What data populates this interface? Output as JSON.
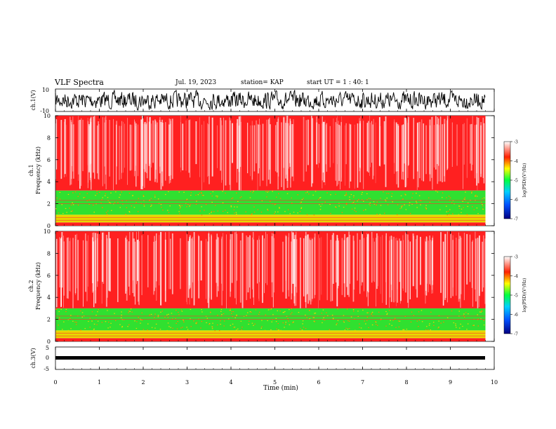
{
  "header": {
    "title": "VLF Spectra",
    "date": "Jul. 19, 2023",
    "station": "station= KAP",
    "start": "start UT =  1 : 40: 1"
  },
  "chart_data": [
    {
      "type": "line",
      "panel": "ch1-waveform",
      "ylabel": "ch.1(V)",
      "ylim": [
        -10,
        10
      ],
      "yticks": [
        "10",
        "-10"
      ],
      "xlim": [
        0,
        10
      ],
      "description_series": [
        {
          "name": "",
          "x": [
            0,
            0.5,
            1,
            1.5,
            2,
            2.5,
            3,
            3.5,
            4,
            4.5,
            5,
            5.5,
            6,
            6.5,
            7,
            7.5,
            8,
            8.5,
            9,
            9.8
          ],
          "y": [
            2,
            -4,
            3,
            -2,
            1,
            -5,
            4,
            -3,
            2,
            -1,
            3,
            -4,
            2,
            -2,
            4,
            -3,
            1,
            -4,
            3,
            -1
          ]
        }
      ]
    },
    {
      "type": "heatmap",
      "panel": "ch1-spectrogram",
      "ylabel": "ch.1\nFrequency (kHz)",
      "ylim": [
        0,
        10
      ],
      "yticks": [
        "0",
        "2",
        "4",
        "6",
        "8",
        "10"
      ],
      "xlim": [
        0,
        10
      ],
      "data_end_min": 9.8,
      "bands": [
        {
          "from_khz": 0,
          "to_khz": 0.3,
          "level": "red"
        },
        {
          "from_khz": 0.3,
          "to_khz": 1.0,
          "level": "yellow"
        },
        {
          "from_khz": 1.0,
          "to_khz": 3.2,
          "level": "green"
        },
        {
          "from_khz": 3.2,
          "to_khz": 10,
          "level": "red"
        }
      ]
    },
    {
      "type": "heatmap",
      "panel": "ch2-spectrogram",
      "ylabel": "ch.2\nFrequency (kHz)",
      "ylim": [
        0,
        10
      ],
      "yticks": [
        "0",
        "2",
        "4",
        "6",
        "8",
        "10"
      ],
      "xlim": [
        0,
        10
      ],
      "data_end_min": 9.8,
      "bands": [
        {
          "from_khz": 0,
          "to_khz": 0.3,
          "level": "red"
        },
        {
          "from_khz": 0.3,
          "to_khz": 1.0,
          "level": "yellow"
        },
        {
          "from_khz": 1.0,
          "to_khz": 3.0,
          "level": "green"
        },
        {
          "from_khz": 3.0,
          "to_khz": 10,
          "level": "red"
        }
      ]
    },
    {
      "type": "line",
      "panel": "ch3-waveform",
      "ylabel": "ch.3(V)",
      "ylim": [
        -5,
        5
      ],
      "yticks": [
        "5",
        "0",
        "-5"
      ],
      "xlim": [
        0,
        10
      ],
      "level_v": 0,
      "data_end_min": 9.8
    }
  ],
  "x_axis": {
    "xlabel": "Time (min)",
    "ticks": [
      "0",
      "1",
      "2",
      "3",
      "4",
      "5",
      "6",
      "7",
      "8",
      "9",
      "10"
    ]
  },
  "colorbar": {
    "label": "log(PSD)(V²/Hz)",
    "ticks": [
      "-3",
      "-4",
      "-5",
      "-6",
      "-7"
    ],
    "range": [
      -7,
      -3
    ]
  },
  "colors": {
    "red": "#ff2020",
    "yellow": "#e8d800",
    "green": "#30e030",
    "accent": "#000000"
  }
}
